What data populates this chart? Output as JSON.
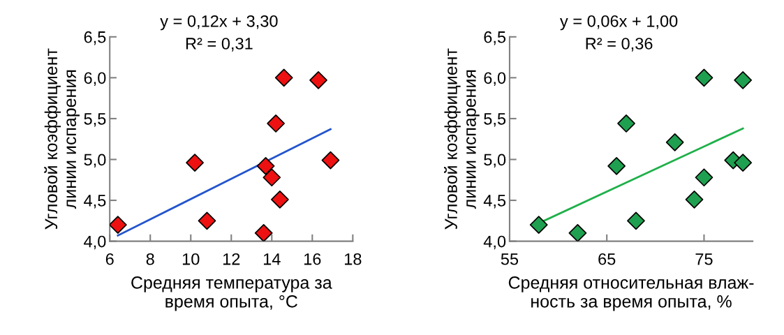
{
  "chart_data": [
    {
      "type": "scatter",
      "xlabel": "Средняя температура за\nвремя опыта, °C",
      "ylabel": "Угловой коэффициент\nлинии испарения",
      "xlim": [
        6,
        18
      ],
      "xticks": [
        6,
        8,
        10,
        12,
        14,
        16,
        18
      ],
      "ylim": [
        4.0,
        6.5
      ],
      "yticks": [
        {
          "value": 4.0,
          "label": "4,0"
        },
        {
          "value": 4.5,
          "label": "4,5"
        },
        {
          "value": 5.0,
          "label": "5,0"
        },
        {
          "value": 5.5,
          "label": "5,5"
        },
        {
          "value": 6.0,
          "label": "6,0"
        },
        {
          "value": 6.5,
          "label": "6,5"
        }
      ],
      "grid": false,
      "legend": false,
      "annotations": [
        "y = 0,12x + 3,30",
        "R² = 0,31"
      ],
      "series": [
        {
          "marker": "diamond",
          "color": "#ee1111",
          "x": [
            6.4,
            10.2,
            10.8,
            13.6,
            13.7,
            14.0,
            14.2,
            14.4,
            14.6,
            16.3,
            16.9
          ],
          "values": [
            4.2,
            4.96,
            4.25,
            4.1,
            4.92,
            4.78,
            5.44,
            4.51,
            6.0,
            5.97,
            4.99
          ]
        },
        {
          "type": "line",
          "marker": "none",
          "color": "#2255cc",
          "x": [
            6.4,
            16.9
          ],
          "values": [
            4.07,
            5.37
          ]
        }
      ]
    },
    {
      "type": "scatter",
      "xlabel": "Средняя относительная влаж-\nность за время опыта, %",
      "ylabel": "Угловой коэффициент\nлинии испарения",
      "xlim": [
        55,
        80
      ],
      "xticks": [
        55,
        65,
        75
      ],
      "ylim": [
        4.0,
        6.5
      ],
      "yticks": [
        {
          "value": 4.0,
          "label": "4,0"
        },
        {
          "value": 4.5,
          "label": "4,5"
        },
        {
          "value": 5.0,
          "label": "5,0"
        },
        {
          "value": 5.5,
          "label": "5,5"
        },
        {
          "value": 6.0,
          "label": "6,0"
        },
        {
          "value": 6.5,
          "label": "6,5"
        }
      ],
      "grid": false,
      "legend": false,
      "annotations": [
        "y = 0,06x + 1,00",
        "R² = 0,36"
      ],
      "series": [
        {
          "marker": "diamond",
          "color": "#1ea050",
          "x": [
            58,
            62,
            66,
            67,
            68,
            72,
            74,
            75,
            75,
            78,
            79,
            79
          ],
          "values": [
            4.2,
            4.1,
            4.92,
            5.44,
            4.25,
            5.21,
            4.51,
            6.0,
            4.78,
            4.99,
            4.96,
            5.97
          ]
        },
        {
          "type": "line",
          "marker": "none",
          "color": "#1fb04a",
          "x": [
            58,
            79
          ],
          "values": [
            4.22,
            5.38
          ]
        }
      ]
    }
  ]
}
